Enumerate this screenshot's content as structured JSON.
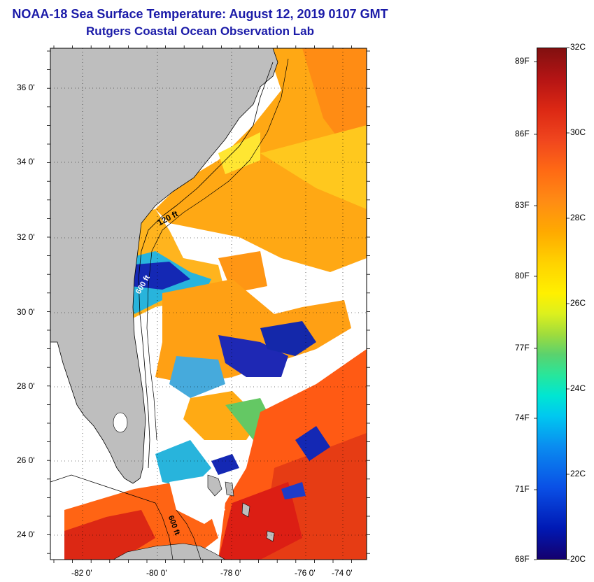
{
  "title": {
    "line1": "NOAA-18 Sea Surface Temperature:  August 12, 2019 0107 GMT",
    "line2": "Rutgers Coastal Ocean Observation Lab"
  },
  "map": {
    "longitude_labels": [
      "-82 0'",
      "-80 0'",
      "-78 0'",
      "-76 0'",
      "-74 0'"
    ],
    "latitude_labels": [
      "36 0'",
      "34 0'",
      "32 0'",
      "30 0'",
      "28 0'",
      "26 0'",
      "24 0'"
    ],
    "isobath_labels": [
      "120 ft",
      "600 ft",
      "600 ft"
    ],
    "colors": {
      "land": "#bebebe",
      "cloud": "#ffffff",
      "cold": "#141eb4",
      "cool": "#28b4dc",
      "mid": "#a0d23c",
      "warm": "#ffaa14",
      "hot": "#ff5a14",
      "hottest": "#dc1e14"
    }
  },
  "colorbar": {
    "fahrenheit_labels": [
      "89F",
      "86F",
      "83F",
      "80F",
      "77F",
      "74F",
      "71F",
      "68F"
    ],
    "celsius_labels": [
      "32C",
      "30C",
      "28C",
      "26C",
      "24C",
      "22C",
      "20C"
    ]
  }
}
